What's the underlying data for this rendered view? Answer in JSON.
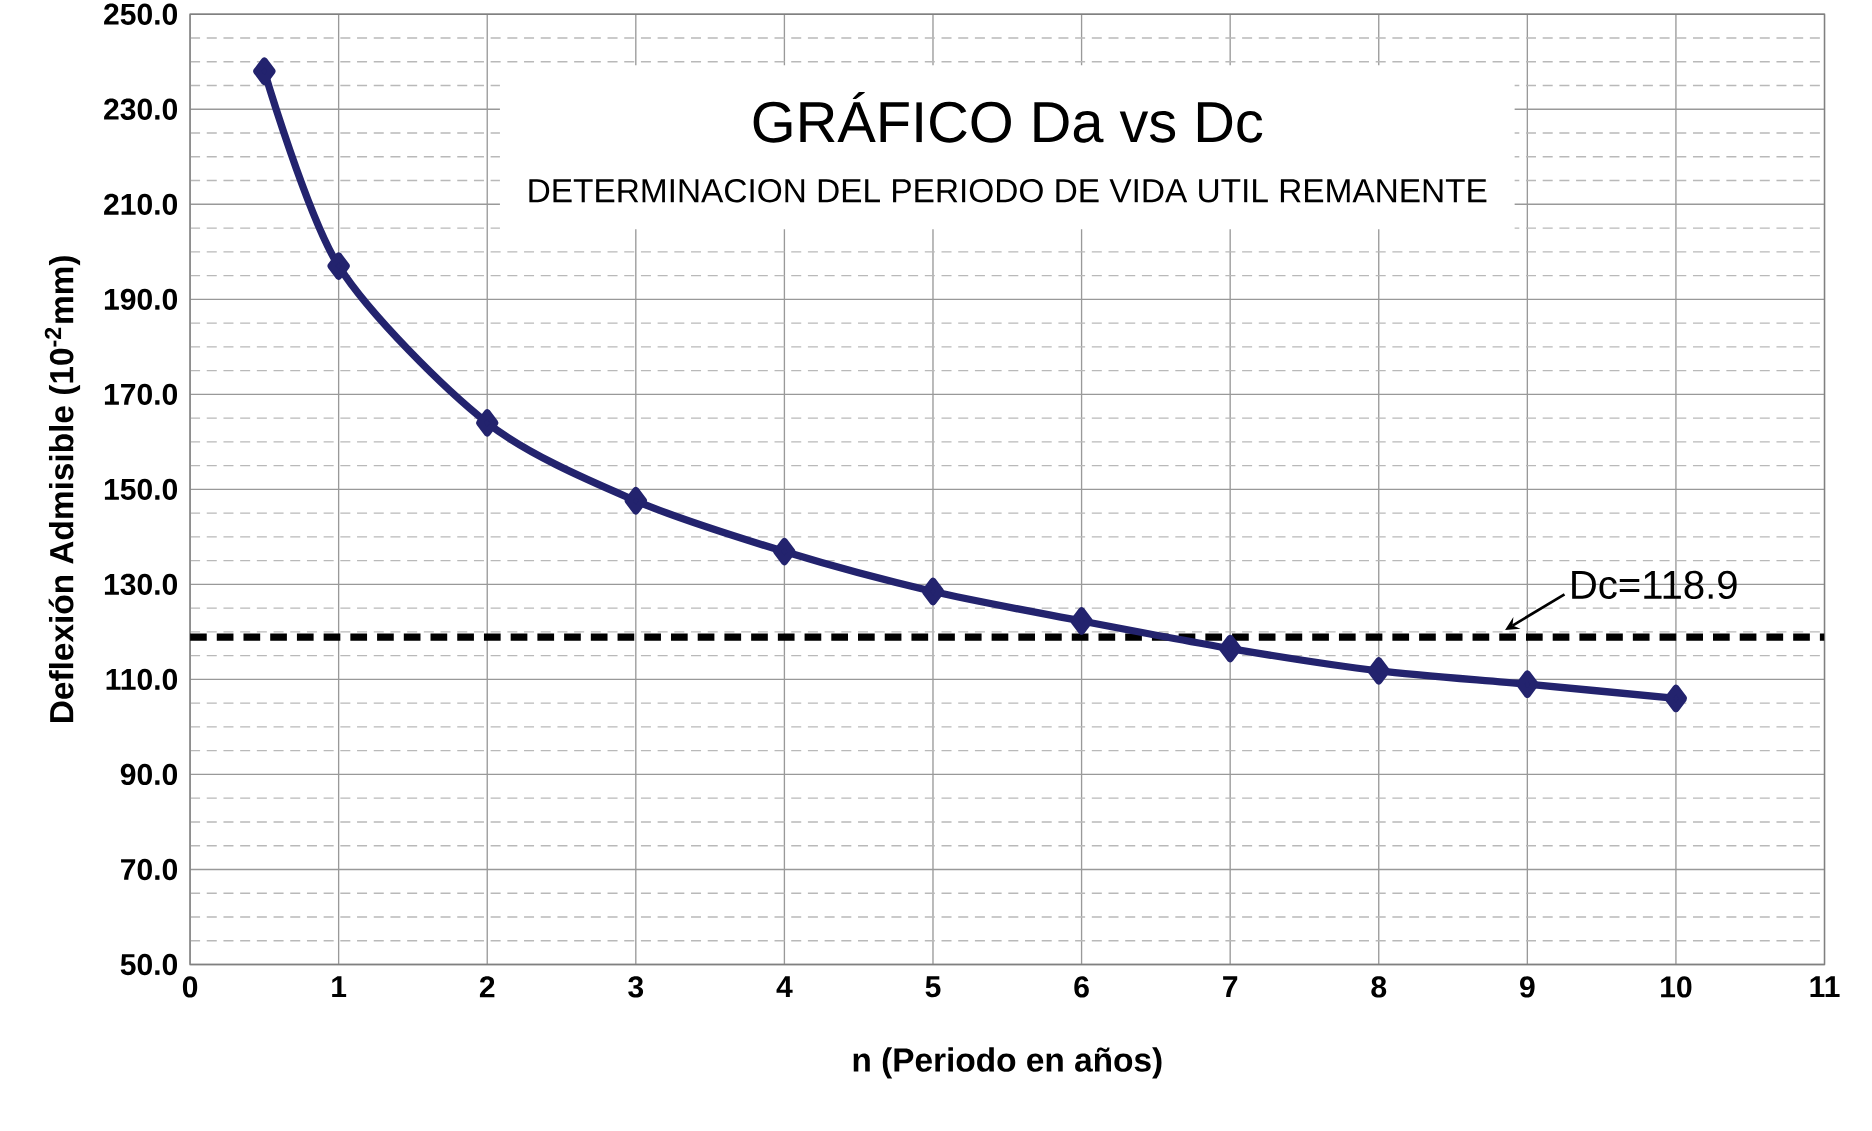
{
  "chart_data": {
    "type": "line",
    "title": "GRÁFICO Da vs Dc",
    "subtitle": "DETERMINACION DEL PERIODO DE VIDA UTIL REMANENTE",
    "xlabel": "n (Periodo en años)",
    "ylabel": "Deflexión Admisible (10$^{-2}$mm)",
    "x": [
      0.5,
      1,
      2,
      3,
      4,
      5,
      6,
      7,
      8,
      9,
      10
    ],
    "series": [
      {
        "color": "#23236e",
        "values": [
          238,
          197,
          164,
          147.6,
          136.9,
          128.5,
          122.3,
          116.5,
          111.8,
          109,
          106
        ]
      }
    ],
    "xlim": [
      0,
      11
    ],
    "xticks": [
      0,
      1,
      2,
      3,
      4,
      5,
      6,
      7,
      8,
      9,
      10,
      11
    ],
    "ylim": [
      50,
      250
    ],
    "yticks": [
      {
        "value": 50,
        "label": "50.0"
      },
      {
        "value": 70,
        "label": "70.0"
      },
      {
        "value": 90,
        "label": "90.0"
      },
      {
        "value": 110,
        "label": "110.0"
      },
      {
        "value": 130,
        "label": "130.0"
      },
      {
        "value": 150,
        "label": "150.0"
      },
      {
        "value": 170,
        "label": "170.0"
      },
      {
        "value": 190,
        "label": "190.0"
      },
      {
        "value": 210,
        "label": "210.0"
      },
      {
        "value": 230,
        "label": "230.0"
      },
      {
        "value": 250,
        "label": "250.0"
      }
    ],
    "ref_lines": [
      {
        "axis": "y",
        "value": 118.9,
        "label": "Dc=118.9",
        "color": "#000000",
        "line_style": "dashed"
      }
    ],
    "grid": true,
    "marker": "diamond",
    "line_style": "solid"
  }
}
